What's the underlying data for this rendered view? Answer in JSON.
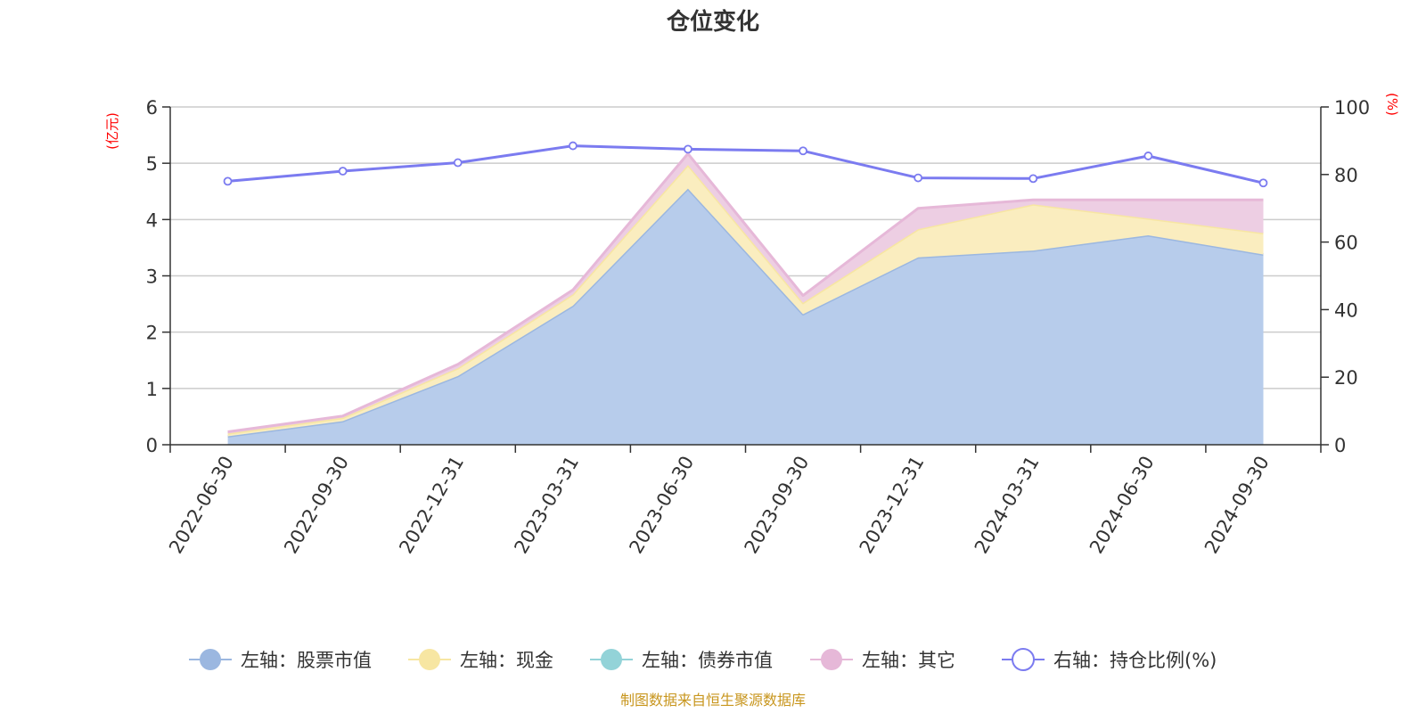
{
  "chart_data": {
    "type": "area",
    "title": "仓位变化",
    "source": "制图数据来自恒生聚源数据库",
    "left_axis": {
      "unit": "(亿元)",
      "min": 0,
      "max": 6,
      "ticks": [
        "0",
        "1",
        "2",
        "3",
        "4",
        "5",
        "6"
      ]
    },
    "right_axis": {
      "unit": "(%)",
      "min": 0,
      "max": 100,
      "ticks": [
        "0",
        "20",
        "40",
        "60",
        "80",
        "100"
      ]
    },
    "categories": [
      "2022-06-30",
      "2022-09-30",
      "2022-12-31",
      "2023-03-31",
      "2023-06-30",
      "2023-09-30",
      "2023-12-31",
      "2024-03-31",
      "2024-06-30",
      "2024-09-30"
    ],
    "series": [
      {
        "name": "左轴：股票市值",
        "axis": "left",
        "stack": true,
        "color": "#9bb7e0",
        "fill": "#b7cceb",
        "values": [
          0.15,
          0.42,
          1.22,
          2.47,
          4.55,
          2.32,
          3.33,
          3.45,
          3.72,
          3.38
        ]
      },
      {
        "name": "左轴：现金",
        "axis": "left",
        "stack": true,
        "color": "#f7e6a2",
        "fill": "#faedbf",
        "values": [
          0.05,
          0.06,
          0.14,
          0.2,
          0.42,
          0.2,
          0.5,
          0.82,
          0.3,
          0.38
        ]
      },
      {
        "name": "左轴：债券市值",
        "axis": "left",
        "stack": true,
        "color": "#93d3d8",
        "fill": "#b8e3e6",
        "values": [
          0,
          0,
          0,
          0,
          0,
          0,
          0,
          0,
          0,
          0
        ]
      },
      {
        "name": "左轴：其它",
        "axis": "left",
        "stack": true,
        "color": "#e6b8d8",
        "fill": "#edcee3",
        "values": [
          0.03,
          0.03,
          0.07,
          0.08,
          0.2,
          0.13,
          0.37,
          0.08,
          0.33,
          0.59
        ]
      },
      {
        "name": "右轴：持仓比例(%)",
        "axis": "right",
        "stack": false,
        "color": "#7b7bf0",
        "values": [
          78.0,
          81.0,
          83.5,
          88.5,
          87.5,
          87.0,
          79.0,
          78.8,
          85.5,
          77.5
        ]
      }
    ]
  }
}
